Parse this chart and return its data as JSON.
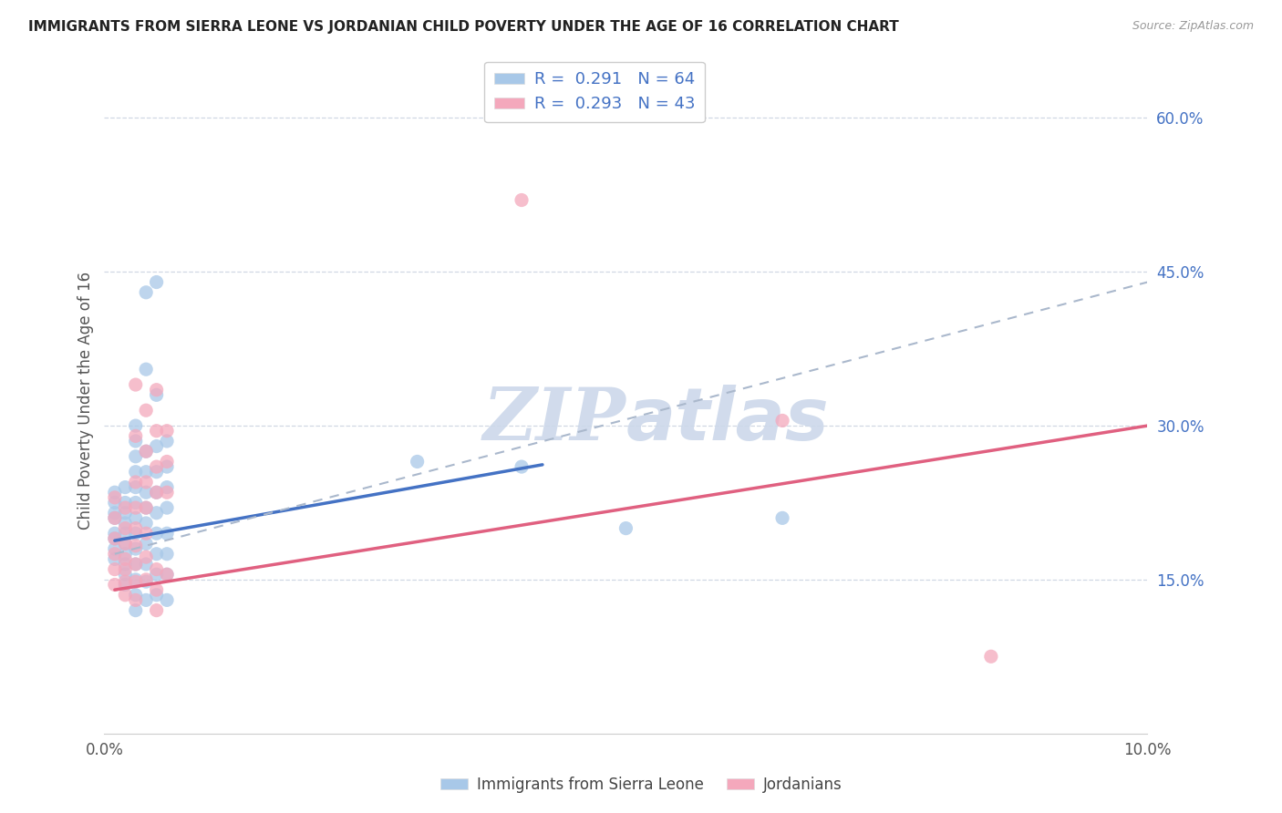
{
  "title": "IMMIGRANTS FROM SIERRA LEONE VS JORDANIAN CHILD POVERTY UNDER THE AGE OF 16 CORRELATION CHART",
  "source": "Source: ZipAtlas.com",
  "ylabel": "Child Poverty Under the Age of 16",
  "x_min": 0.0,
  "x_max": 0.1,
  "y_min": 0.0,
  "y_max": 0.65,
  "legend_label_1": "Immigrants from Sierra Leone",
  "legend_label_2": "Jordanians",
  "r1": "0.291",
  "n1": "64",
  "r2": "0.293",
  "n2": "43",
  "color_blue": "#a8c8e8",
  "color_pink": "#f4a8bc",
  "line_color_blue": "#4472c4",
  "line_color_pink": "#e06080",
  "dashed_line_color": "#aab8cc",
  "watermark_color": "#ccd8ea",
  "background_color": "#ffffff",
  "grid_color": "#d0d8e4",
  "blue_scatter": [
    [
      0.001,
      0.235
    ],
    [
      0.001,
      0.225
    ],
    [
      0.001,
      0.215
    ],
    [
      0.001,
      0.21
    ],
    [
      0.001,
      0.195
    ],
    [
      0.001,
      0.19
    ],
    [
      0.001,
      0.18
    ],
    [
      0.001,
      0.17
    ],
    [
      0.002,
      0.24
    ],
    [
      0.002,
      0.225
    ],
    [
      0.002,
      0.215
    ],
    [
      0.002,
      0.205
    ],
    [
      0.002,
      0.195
    ],
    [
      0.002,
      0.185
    ],
    [
      0.002,
      0.175
    ],
    [
      0.002,
      0.165
    ],
    [
      0.002,
      0.155
    ],
    [
      0.002,
      0.145
    ],
    [
      0.003,
      0.3
    ],
    [
      0.003,
      0.285
    ],
    [
      0.003,
      0.27
    ],
    [
      0.003,
      0.255
    ],
    [
      0.003,
      0.24
    ],
    [
      0.003,
      0.225
    ],
    [
      0.003,
      0.21
    ],
    [
      0.003,
      0.195
    ],
    [
      0.003,
      0.18
    ],
    [
      0.003,
      0.165
    ],
    [
      0.003,
      0.15
    ],
    [
      0.003,
      0.135
    ],
    [
      0.003,
      0.12
    ],
    [
      0.004,
      0.43
    ],
    [
      0.004,
      0.355
    ],
    [
      0.004,
      0.275
    ],
    [
      0.004,
      0.255
    ],
    [
      0.004,
      0.235
    ],
    [
      0.004,
      0.22
    ],
    [
      0.004,
      0.205
    ],
    [
      0.004,
      0.185
    ],
    [
      0.004,
      0.165
    ],
    [
      0.004,
      0.148
    ],
    [
      0.004,
      0.13
    ],
    [
      0.005,
      0.44
    ],
    [
      0.005,
      0.33
    ],
    [
      0.005,
      0.28
    ],
    [
      0.005,
      0.255
    ],
    [
      0.005,
      0.235
    ],
    [
      0.005,
      0.215
    ],
    [
      0.005,
      0.195
    ],
    [
      0.005,
      0.175
    ],
    [
      0.005,
      0.155
    ],
    [
      0.005,
      0.135
    ],
    [
      0.006,
      0.285
    ],
    [
      0.006,
      0.26
    ],
    [
      0.006,
      0.24
    ],
    [
      0.006,
      0.22
    ],
    [
      0.006,
      0.195
    ],
    [
      0.006,
      0.175
    ],
    [
      0.006,
      0.155
    ],
    [
      0.006,
      0.13
    ],
    [
      0.03,
      0.265
    ],
    [
      0.04,
      0.26
    ],
    [
      0.05,
      0.2
    ],
    [
      0.065,
      0.21
    ]
  ],
  "pink_scatter": [
    [
      0.001,
      0.23
    ],
    [
      0.001,
      0.21
    ],
    [
      0.001,
      0.19
    ],
    [
      0.001,
      0.175
    ],
    [
      0.001,
      0.16
    ],
    [
      0.001,
      0.145
    ],
    [
      0.002,
      0.22
    ],
    [
      0.002,
      0.2
    ],
    [
      0.002,
      0.185
    ],
    [
      0.002,
      0.17
    ],
    [
      0.002,
      0.16
    ],
    [
      0.002,
      0.148
    ],
    [
      0.002,
      0.135
    ],
    [
      0.003,
      0.34
    ],
    [
      0.003,
      0.29
    ],
    [
      0.003,
      0.245
    ],
    [
      0.003,
      0.22
    ],
    [
      0.003,
      0.2
    ],
    [
      0.003,
      0.183
    ],
    [
      0.003,
      0.165
    ],
    [
      0.003,
      0.148
    ],
    [
      0.003,
      0.13
    ],
    [
      0.004,
      0.315
    ],
    [
      0.004,
      0.275
    ],
    [
      0.004,
      0.245
    ],
    [
      0.004,
      0.22
    ],
    [
      0.004,
      0.195
    ],
    [
      0.004,
      0.172
    ],
    [
      0.004,
      0.15
    ],
    [
      0.005,
      0.335
    ],
    [
      0.005,
      0.295
    ],
    [
      0.005,
      0.26
    ],
    [
      0.005,
      0.235
    ],
    [
      0.005,
      0.16
    ],
    [
      0.005,
      0.14
    ],
    [
      0.005,
      0.12
    ],
    [
      0.006,
      0.295
    ],
    [
      0.006,
      0.265
    ],
    [
      0.006,
      0.235
    ],
    [
      0.006,
      0.155
    ],
    [
      0.04,
      0.52
    ],
    [
      0.065,
      0.305
    ],
    [
      0.085,
      0.075
    ]
  ],
  "blue_trend_x": [
    0.001,
    0.042
  ],
  "blue_trend_y": [
    0.188,
    0.262
  ],
  "pink_trend_x": [
    0.001,
    0.1
  ],
  "pink_trend_y": [
    0.14,
    0.3
  ],
  "dashed_trend_x": [
    0.001,
    0.1
  ],
  "dashed_trend_y": [
    0.175,
    0.44
  ]
}
